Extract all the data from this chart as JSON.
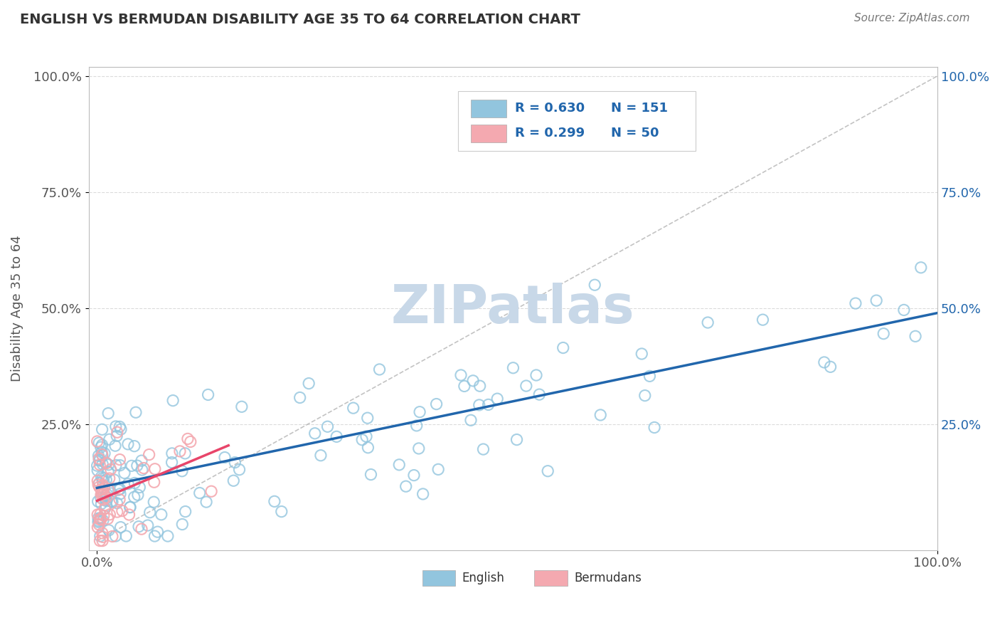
{
  "title": "ENGLISH VS BERMUDAN DISABILITY AGE 35 TO 64 CORRELATION CHART",
  "source_text": "Source: ZipAtlas.com",
  "ylabel": "Disability Age 35 to 64",
  "xlim": [
    0.0,
    1.0
  ],
  "ylim": [
    0.0,
    1.0
  ],
  "english_R": 0.63,
  "english_N": 151,
  "bermudan_R": 0.299,
  "bermudan_N": 50,
  "english_color": "#92C5DE",
  "bermudan_color": "#F4A9B0",
  "english_line_color": "#2166AC",
  "bermudan_line_color": "#E8456A",
  "ref_line_color": "#AAAAAA",
  "watermark": "ZIPatlas",
  "watermark_color": "#C8D8E8",
  "background_color": "#FFFFFF",
  "title_color": "#333333",
  "legend_text_color": "#2166AC",
  "seed_english": 42,
  "seed_bermudan": 7
}
